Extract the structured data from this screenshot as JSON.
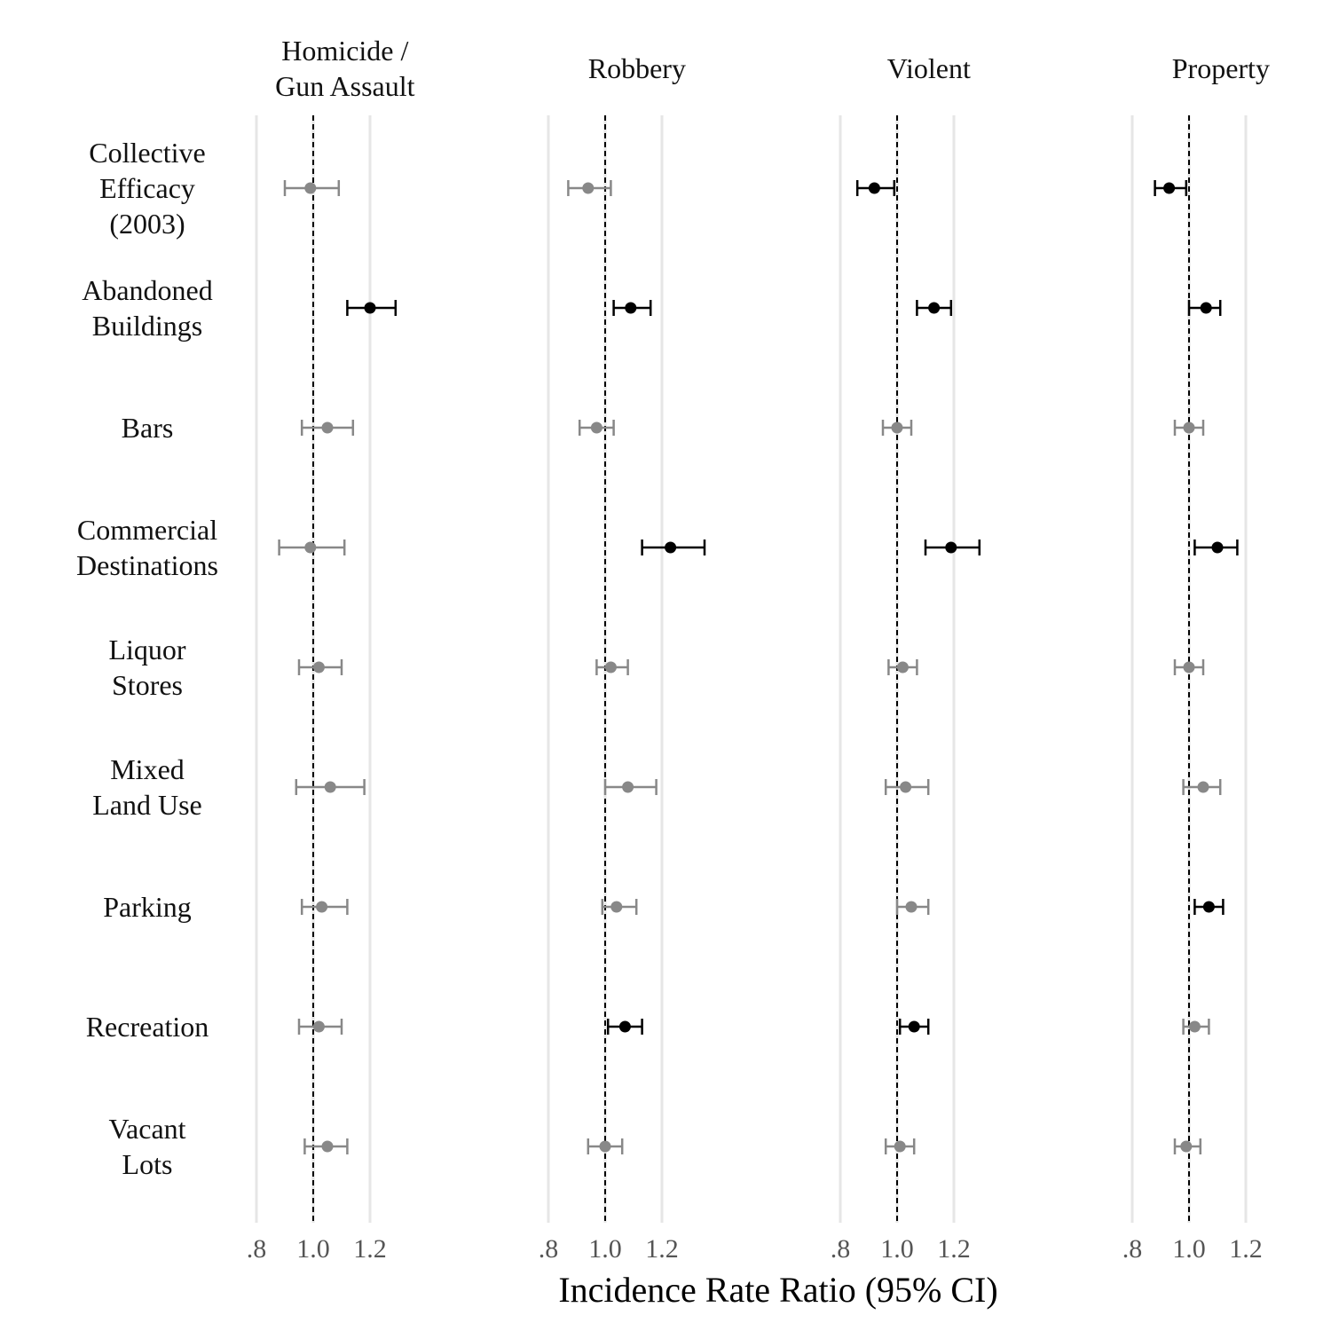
{
  "chart_data": {
    "type": "forest",
    "xlabel": "Incidence Rate Ratio (95% CI)",
    "xlim": [
      0.8,
      1.2
    ],
    "xticks": [
      0.8,
      1.0,
      1.2
    ],
    "xtick_labels": [
      ".8",
      "1.0",
      "1.2"
    ],
    "reference_line": 1.0,
    "grid": true,
    "colors": {
      "significant": "#000000",
      "not_significant": "#888888",
      "grid": "#e6e6e6",
      "tick_text": "#555555"
    },
    "variables": [
      [
        "Collective",
        "Efficacy",
        "(2003)"
      ],
      [
        "Abandoned",
        "Buildings"
      ],
      [
        "Bars"
      ],
      [
        "Commercial",
        "Destinations"
      ],
      [
        "Liquor",
        "Stores"
      ],
      [
        "Mixed",
        "Land Use"
      ],
      [
        "Parking"
      ],
      [
        "Recreation"
      ],
      [
        "Vacant",
        "Lots"
      ]
    ],
    "panels": [
      {
        "title": [
          "Homicide /",
          "Gun Assault"
        ],
        "estimates": [
          {
            "est": 0.99,
            "lo": 0.9,
            "hi": 1.09,
            "sig": false
          },
          {
            "est": 1.2,
            "lo": 1.12,
            "hi": 1.29,
            "sig": true
          },
          {
            "est": 1.05,
            "lo": 0.96,
            "hi": 1.14,
            "sig": false
          },
          {
            "est": 0.99,
            "lo": 0.88,
            "hi": 1.11,
            "sig": false
          },
          {
            "est": 1.02,
            "lo": 0.95,
            "hi": 1.1,
            "sig": false
          },
          {
            "est": 1.06,
            "lo": 0.94,
            "hi": 1.18,
            "sig": false
          },
          {
            "est": 1.03,
            "lo": 0.96,
            "hi": 1.12,
            "sig": false
          },
          {
            "est": 1.02,
            "lo": 0.95,
            "hi": 1.1,
            "sig": false
          },
          {
            "est": 1.05,
            "lo": 0.97,
            "hi": 1.12,
            "sig": false
          }
        ]
      },
      {
        "title": [
          "Robbery"
        ],
        "estimates": [
          {
            "est": 0.94,
            "lo": 0.87,
            "hi": 1.02,
            "sig": false
          },
          {
            "est": 1.09,
            "lo": 1.03,
            "hi": 1.16,
            "sig": true
          },
          {
            "est": 0.97,
            "lo": 0.91,
            "hi": 1.03,
            "sig": false
          },
          {
            "est": 1.23,
            "lo": 1.13,
            "hi": 1.35,
            "sig": true
          },
          {
            "est": 1.02,
            "lo": 0.97,
            "hi": 1.08,
            "sig": false
          },
          {
            "est": 1.08,
            "lo": 1.0,
            "hi": 1.18,
            "sig": false
          },
          {
            "est": 1.04,
            "lo": 0.99,
            "hi": 1.11,
            "sig": false
          },
          {
            "est": 1.07,
            "lo": 1.01,
            "hi": 1.13,
            "sig": true
          },
          {
            "est": 1.0,
            "lo": 0.94,
            "hi": 1.06,
            "sig": false
          }
        ]
      },
      {
        "title": [
          "Violent"
        ],
        "estimates": [
          {
            "est": 0.92,
            "lo": 0.86,
            "hi": 0.99,
            "sig": true
          },
          {
            "est": 1.13,
            "lo": 1.07,
            "hi": 1.19,
            "sig": true
          },
          {
            "est": 1.0,
            "lo": 0.95,
            "hi": 1.05,
            "sig": false
          },
          {
            "est": 1.19,
            "lo": 1.1,
            "hi": 1.29,
            "sig": true
          },
          {
            "est": 1.02,
            "lo": 0.97,
            "hi": 1.07,
            "sig": false
          },
          {
            "est": 1.03,
            "lo": 0.96,
            "hi": 1.11,
            "sig": false
          },
          {
            "est": 1.05,
            "lo": 1.0,
            "hi": 1.11,
            "sig": false
          },
          {
            "est": 1.06,
            "lo": 1.01,
            "hi": 1.11,
            "sig": true
          },
          {
            "est": 1.01,
            "lo": 0.96,
            "hi": 1.06,
            "sig": false
          }
        ]
      },
      {
        "title": [
          "Property"
        ],
        "estimates": [
          {
            "est": 0.93,
            "lo": 0.88,
            "hi": 0.99,
            "sig": true
          },
          {
            "est": 1.06,
            "lo": 1.0,
            "hi": 1.11,
            "sig": true
          },
          {
            "est": 1.0,
            "lo": 0.95,
            "hi": 1.05,
            "sig": false
          },
          {
            "est": 1.1,
            "lo": 1.02,
            "hi": 1.17,
            "sig": true
          },
          {
            "est": 1.0,
            "lo": 0.95,
            "hi": 1.05,
            "sig": false
          },
          {
            "est": 1.05,
            "lo": 0.98,
            "hi": 1.11,
            "sig": false
          },
          {
            "est": 1.07,
            "lo": 1.02,
            "hi": 1.12,
            "sig": true
          },
          {
            "est": 1.02,
            "lo": 0.98,
            "hi": 1.07,
            "sig": false
          },
          {
            "est": 0.99,
            "lo": 0.95,
            "hi": 1.04,
            "sig": false
          }
        ]
      }
    ]
  }
}
